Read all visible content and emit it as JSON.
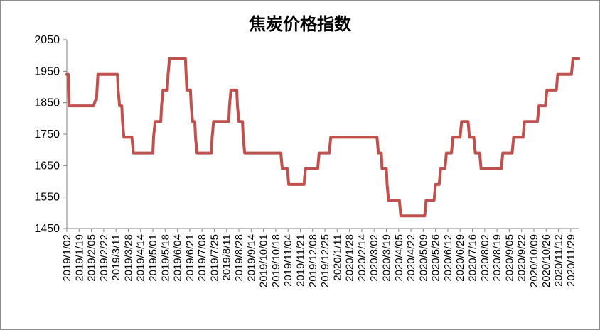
{
  "chart_data": {
    "type": "line",
    "title": "焦炭价格指数",
    "xlabel": "",
    "ylabel": "",
    "ylim": [
      1450,
      2050
    ],
    "yticks": [
      1450,
      1550,
      1650,
      1750,
      1850,
      1950,
      2050
    ],
    "grid": false,
    "legend": "none",
    "line_color": "#c0504d",
    "x_tick_labels": [
      "2019/1/02",
      "2019/1/19",
      "2019/2/05",
      "2019/2/22",
      "2019/3/11",
      "2019/3/28",
      "2019/4/14",
      "2019/5/01",
      "2019/5/18",
      "2019/6/04",
      "2019/6/21",
      "2019/7/08",
      "2019/7/25",
      "2019/8/11",
      "2019/8/28",
      "2019/9/14",
      "2019/10/01",
      "2019/10/18",
      "2019/11/04",
      "2019/11/21",
      "2019/12/08",
      "2019/12/25",
      "2020/1/11",
      "2020/1/28",
      "2020/2/14",
      "2020/3/02",
      "2020/3/19",
      "2020/4/05",
      "2020/4/22",
      "2020/5/09",
      "2020/5/26",
      "2020/6/12",
      "2020/6/29",
      "2020/7/16",
      "2020/8/02",
      "2020/8/19",
      "2020/9/05",
      "2020/9/22",
      "2020/10/09",
      "2020/10/26",
      "2020/11/12",
      "2020/11/29"
    ],
    "series": [
      {
        "x": [
          "2019-01-02",
          "2019-01-04",
          "2019-01-05",
          "2019-02-06",
          "2019-02-08",
          "2019-02-11",
          "2019-02-12",
          "2019-02-14",
          "2019-02-15",
          "2019-03-13",
          "2019-03-14",
          "2019-03-16",
          "2019-03-19",
          "2019-03-20",
          "2019-03-22",
          "2019-04-01",
          "2019-04-02",
          "2019-04-04",
          "2019-05-01",
          "2019-05-02",
          "2019-05-04",
          "2019-05-12",
          "2019-05-13",
          "2019-05-15",
          "2019-05-21",
          "2019-05-22",
          "2019-05-24",
          "2019-06-14",
          "2019-06-15",
          "2019-06-17",
          "2019-06-22",
          "2019-06-23",
          "2019-06-25",
          "2019-06-28",
          "2019-06-29",
          "2019-07-01",
          "2019-07-03",
          "2019-07-04",
          "2019-07-06",
          "2019-07-21",
          "2019-07-22",
          "2019-07-24",
          "2019-08-14",
          "2019-08-15",
          "2019-08-17",
          "2019-08-25",
          "2019-08-26",
          "2019-08-28",
          "2019-09-02",
          "2019-09-03",
          "2019-09-05",
          "2019-10-24",
          "2019-10-25",
          "2019-10-27",
          "2019-11-02",
          "2019-11-03",
          "2019-11-05",
          "2019-11-25",
          "2019-11-26",
          "2019-11-28",
          "2019-12-14",
          "2019-12-15",
          "2019-12-17",
          "2019-12-30",
          "2019-12-31",
          "2020-01-02",
          "2020-03-05",
          "2020-03-06",
          "2020-03-08",
          "2020-03-12",
          "2020-03-13",
          "2020-03-15",
          "2020-03-19",
          "2020-03-20",
          "2020-03-22",
          "2020-04-05",
          "2020-04-06",
          "2020-04-08",
          "2020-05-10",
          "2020-05-11",
          "2020-05-13",
          "2020-05-23",
          "2020-05-24",
          "2020-05-26",
          "2020-05-30",
          "2020-05-31",
          "2020-06-02",
          "2020-06-07",
          "2020-06-08",
          "2020-06-10",
          "2020-06-16",
          "2020-06-17",
          "2020-06-19",
          "2020-06-28",
          "2020-06-29",
          "2020-07-01",
          "2020-07-09",
          "2020-07-10",
          "2020-07-12",
          "2020-07-17",
          "2020-07-18",
          "2020-07-20",
          "2020-07-25",
          "2020-07-26",
          "2020-07-28",
          "2020-08-24",
          "2020-08-25",
          "2020-08-27",
          "2020-09-08",
          "2020-09-09",
          "2020-09-11",
          "2020-09-23",
          "2020-09-24",
          "2020-09-26",
          "2020-10-13",
          "2020-10-14",
          "2020-10-16",
          "2020-10-24",
          "2020-10-25",
          "2020-10-27",
          "2020-11-08",
          "2020-11-09",
          "2020-11-11",
          "2020-11-29",
          "2020-11-30",
          "2020-12-02",
          "2020-12-10"
        ],
        "values": [
          1940,
          1940,
          1840,
          1840,
          1840,
          1860,
          1860,
          1940,
          1940,
          1940,
          1890,
          1840,
          1840,
          1790,
          1740,
          1740,
          1740,
          1690,
          1690,
          1740,
          1790,
          1790,
          1840,
          1890,
          1890,
          1940,
          1990,
          1990,
          1990,
          1890,
          1890,
          1840,
          1790,
          1790,
          1740,
          1690,
          1690,
          1690,
          1690,
          1690,
          1740,
          1790,
          1790,
          1840,
          1890,
          1890,
          1840,
          1790,
          1790,
          1740,
          1690,
          1690,
          1690,
          1640,
          1640,
          1640,
          1590,
          1590,
          1590,
          1640,
          1640,
          1640,
          1690,
          1690,
          1690,
          1740,
          1740,
          1740,
          1690,
          1690,
          1640,
          1640,
          1640,
          1590,
          1540,
          1540,
          1540,
          1490,
          1490,
          1490,
          1540,
          1540,
          1540,
          1590,
          1590,
          1590,
          1640,
          1640,
          1640,
          1690,
          1690,
          1690,
          1740,
          1740,
          1740,
          1790,
          1790,
          1790,
          1740,
          1740,
          1740,
          1690,
          1690,
          1690,
          1640,
          1640,
          1640,
          1690,
          1690,
          1690,
          1740,
          1740,
          1740,
          1790,
          1790,
          1790,
          1840,
          1840,
          1840,
          1890,
          1890,
          1890,
          1940,
          1940,
          1940,
          1990,
          1990
        ]
      }
    ]
  }
}
